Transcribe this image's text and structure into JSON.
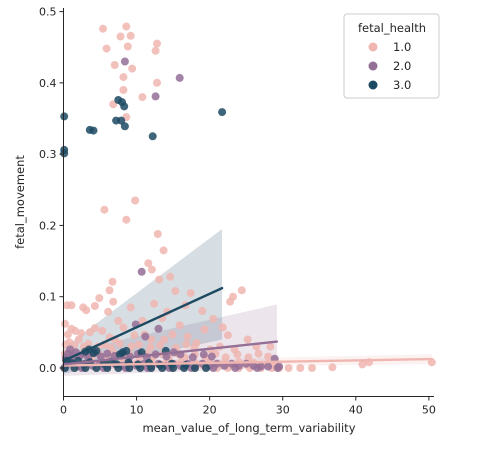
{
  "chart_data": {
    "type": "scatter",
    "xlabel": "mean_value_of_long_term_variability",
    "ylabel": "fetal_movement",
    "xlim": [
      0,
      50.7
    ],
    "ylim": [
      -0.04,
      0.505
    ],
    "xticks": [
      0,
      10,
      20,
      30,
      40,
      50
    ],
    "yticks": [
      0.0,
      0.1,
      0.2,
      0.3,
      0.4,
      0.5
    ],
    "xtick_labels": [
      "0",
      "10",
      "20",
      "30",
      "40",
      "50"
    ],
    "ytick_labels": [
      "0.0",
      "0.1",
      "0.2",
      "0.3",
      "0.4",
      "0.5"
    ],
    "grid": false,
    "legend": {
      "title": "fetal_health",
      "placement": "top-right",
      "entries": [
        "1.0",
        "2.0",
        "3.0"
      ]
    },
    "series": [
      {
        "name": "1.0",
        "color": "#f0b6b0",
        "points": [
          [
            5.4,
            0.476
          ],
          [
            8.6,
            0.479
          ],
          [
            7.8,
            0.465
          ],
          [
            9.2,
            0.466
          ],
          [
            12.8,
            0.455
          ],
          [
            12.6,
            0.445
          ],
          [
            5.9,
            0.448
          ],
          [
            8.8,
            0.451
          ],
          [
            7.0,
            0.425
          ],
          [
            9.4,
            0.42
          ],
          [
            8.2,
            0.408
          ],
          [
            8.2,
            0.39
          ],
          [
            12.8,
            0.4
          ],
          [
            10.8,
            0.38
          ],
          [
            6.8,
            0.37
          ],
          [
            8.6,
            0.352
          ],
          [
            5.6,
            0.222
          ],
          [
            9.8,
            0.235
          ],
          [
            8.6,
            0.208
          ],
          [
            12.9,
            0.188
          ],
          [
            13.7,
            0.165
          ],
          [
            11.6,
            0.147
          ],
          [
            12.1,
            0.138
          ],
          [
            14.6,
            0.128
          ],
          [
            13.1,
            0.124
          ],
          [
            15.3,
            0.108
          ],
          [
            17.4,
            0.105
          ],
          [
            24.4,
            0.109
          ],
          [
            23.2,
            0.1
          ],
          [
            22.8,
            0.093
          ],
          [
            16.7,
            0.088
          ],
          [
            14.2,
            0.079
          ],
          [
            12.4,
            0.09
          ],
          [
            9.2,
            0.085
          ],
          [
            6.8,
            0.093
          ],
          [
            2.7,
            0.085
          ],
          [
            0.5,
            0.088
          ],
          [
            1.1,
            0.088
          ],
          [
            3.1,
            0.081
          ],
          [
            4.9,
            0.098
          ],
          [
            6.3,
            0.109
          ],
          [
            6.7,
            0.121
          ],
          [
            4.3,
            0.087
          ],
          [
            6.1,
            0.079
          ],
          [
            7.5,
            0.066
          ],
          [
            10.8,
            0.066
          ],
          [
            13.5,
            0.07
          ],
          [
            15.9,
            0.06
          ],
          [
            19.0,
            0.08
          ],
          [
            20.5,
            0.069
          ],
          [
            21.8,
            0.057
          ],
          [
            19.3,
            0.054
          ],
          [
            22.5,
            0.046
          ],
          [
            25.2,
            0.04
          ],
          [
            28.3,
            0.03
          ],
          [
            26.4,
            0.03
          ],
          [
            0.2,
            0.062
          ],
          [
            0.6,
            0.047
          ],
          [
            1.1,
            0.055
          ],
          [
            1.6,
            0.052
          ],
          [
            2.1,
            0.04
          ],
          [
            2.4,
            0.049
          ],
          [
            3.6,
            0.05
          ],
          [
            4.3,
            0.056
          ],
          [
            5.3,
            0.052
          ],
          [
            6.3,
            0.043
          ],
          [
            7.0,
            0.04
          ],
          [
            8.2,
            0.057
          ],
          [
            9.7,
            0.046
          ],
          [
            11.1,
            0.047
          ],
          [
            12.0,
            0.04
          ],
          [
            13.8,
            0.04
          ],
          [
            14.9,
            0.047
          ],
          [
            17.0,
            0.044
          ],
          [
            18.2,
            0.035
          ],
          [
            0.3,
            0.033
          ],
          [
            0.8,
            0.036
          ],
          [
            1.5,
            0.032
          ],
          [
            2.8,
            0.03
          ],
          [
            3.4,
            0.034
          ],
          [
            4.7,
            0.03
          ],
          [
            5.6,
            0.033
          ],
          [
            6.5,
            0.028
          ],
          [
            7.7,
            0.034
          ],
          [
            9.3,
            0.03
          ],
          [
            10.3,
            0.033
          ],
          [
            11.9,
            0.029
          ],
          [
            13.2,
            0.032
          ],
          [
            15.4,
            0.028
          ],
          [
            16.8,
            0.033
          ],
          [
            17.9,
            0.028
          ],
          [
            20.1,
            0.026
          ],
          [
            21.4,
            0.03
          ],
          [
            23.4,
            0.026
          ],
          [
            0.2,
            0.02
          ],
          [
            0.9,
            0.02
          ],
          [
            1.7,
            0.016
          ],
          [
            2.6,
            0.02
          ],
          [
            3.8,
            0.015
          ],
          [
            4.9,
            0.019
          ],
          [
            5.9,
            0.015
          ],
          [
            6.9,
            0.02
          ],
          [
            8.0,
            0.017
          ],
          [
            9.0,
            0.019
          ],
          [
            10.4,
            0.015
          ],
          [
            11.4,
            0.02
          ],
          [
            12.3,
            0.016
          ],
          [
            13.5,
            0.019
          ],
          [
            14.4,
            0.015
          ],
          [
            15.6,
            0.02
          ],
          [
            16.6,
            0.015
          ],
          [
            18.0,
            0.019
          ],
          [
            19.4,
            0.015
          ],
          [
            20.8,
            0.02
          ],
          [
            22.2,
            0.015
          ],
          [
            23.8,
            0.019
          ],
          [
            25.3,
            0.015
          ],
          [
            26.7,
            0.02
          ],
          [
            28.0,
            0.016
          ],
          [
            0.4,
            0.008
          ],
          [
            1.2,
            0.005
          ],
          [
            2.2,
            0.007
          ],
          [
            3.1,
            0.004
          ],
          [
            4.0,
            0.007
          ],
          [
            5.0,
            0.005
          ],
          [
            6.0,
            0.008
          ],
          [
            7.1,
            0.004
          ],
          [
            8.1,
            0.008
          ],
          [
            9.1,
            0.005
          ],
          [
            10.0,
            0.007
          ],
          [
            11.0,
            0.004
          ],
          [
            12.0,
            0.008
          ],
          [
            13.0,
            0.005
          ],
          [
            14.0,
            0.007
          ],
          [
            15.0,
            0.004
          ],
          [
            16.0,
            0.008
          ],
          [
            17.0,
            0.005
          ],
          [
            18.0,
            0.007
          ],
          [
            19.0,
            0.004
          ],
          [
            20.0,
            0.008
          ],
          [
            21.0,
            0.005
          ],
          [
            22.0,
            0.007
          ],
          [
            23.0,
            0.004
          ],
          [
            24.0,
            0.008
          ],
          [
            25.0,
            0.005
          ],
          [
            26.0,
            0.007
          ],
          [
            27.0,
            0.004
          ],
          [
            28.0,
            0.006
          ],
          [
            29.0,
            0.004
          ],
          [
            0.1,
            0.0
          ],
          [
            1.5,
            0.0
          ],
          [
            3.0,
            0.0
          ],
          [
            4.5,
            0.0
          ],
          [
            6.0,
            0.0
          ],
          [
            7.5,
            0.0
          ],
          [
            9.0,
            0.0
          ],
          [
            10.5,
            0.0
          ],
          [
            12.0,
            0.0
          ],
          [
            13.5,
            0.0
          ],
          [
            15.0,
            0.0
          ],
          [
            16.5,
            0.0
          ],
          [
            18.0,
            0.0
          ],
          [
            19.5,
            0.0
          ],
          [
            21.0,
            0.0
          ],
          [
            22.5,
            0.0
          ],
          [
            24.0,
            0.0
          ],
          [
            25.5,
            0.0
          ],
          [
            27.0,
            0.0
          ],
          [
            28.5,
            0.0
          ],
          [
            29.5,
            0.0
          ],
          [
            30.8,
            0.0
          ],
          [
            32.4,
            0.0
          ],
          [
            34.0,
            0.0
          ],
          [
            36.8,
            0.001
          ],
          [
            40.9,
            0.005
          ],
          [
            41.8,
            0.008
          ],
          [
            50.4,
            0.008
          ]
        ]
      },
      {
        "name": "2.0",
        "color": "#946f96",
        "points": [
          [
            8.4,
            0.43
          ],
          [
            15.9,
            0.407
          ],
          [
            12.6,
            0.381
          ],
          [
            10.7,
            0.135
          ],
          [
            9.9,
            0.061
          ],
          [
            13.0,
            0.055
          ],
          [
            11.2,
            0.044
          ],
          [
            15.1,
            0.022
          ],
          [
            20.3,
            0.016
          ],
          [
            0.3,
            0.014
          ],
          [
            0.6,
            0.02
          ],
          [
            0.9,
            0.026
          ],
          [
            1.3,
            0.016
          ],
          [
            1.7,
            0.022
          ],
          [
            2.2,
            0.017
          ],
          [
            2.8,
            0.02
          ],
          [
            3.4,
            0.015
          ],
          [
            4.2,
            0.021
          ],
          [
            5.1,
            0.016
          ],
          [
            6.0,
            0.02
          ],
          [
            7.0,
            0.017
          ],
          [
            8.0,
            0.02
          ],
          [
            9.1,
            0.016
          ],
          [
            10.2,
            0.02
          ],
          [
            11.4,
            0.015
          ],
          [
            12.6,
            0.019
          ],
          [
            14.1,
            0.016
          ],
          [
            16.0,
            0.019
          ],
          [
            17.7,
            0.015
          ],
          [
            19.2,
            0.019
          ],
          [
            0.4,
            0.004
          ],
          [
            1.2,
            0.006
          ],
          [
            2.0,
            0.003
          ],
          [
            3.0,
            0.006
          ],
          [
            4.0,
            0.003
          ],
          [
            5.0,
            0.006
          ],
          [
            6.0,
            0.003
          ],
          [
            7.0,
            0.006
          ],
          [
            8.0,
            0.003
          ],
          [
            9.0,
            0.006
          ],
          [
            10.0,
            0.003
          ],
          [
            11.0,
            0.006
          ],
          [
            12.0,
            0.003
          ],
          [
            13.0,
            0.006
          ],
          [
            14.0,
            0.003
          ],
          [
            15.0,
            0.006
          ],
          [
            16.0,
            0.003
          ],
          [
            17.0,
            0.006
          ],
          [
            18.0,
            0.003
          ],
          [
            19.0,
            0.006
          ],
          [
            20.0,
            0.003
          ],
          [
            21.0,
            0.006
          ],
          [
            22.0,
            0.003
          ],
          [
            23.0,
            0.006
          ],
          [
            24.0,
            0.003
          ],
          [
            25.0,
            0.006
          ],
          [
            26.0,
            0.003
          ],
          [
            27.0,
            0.002
          ],
          [
            28.0,
            0.002
          ],
          [
            28.9,
            0.013
          ],
          [
            29.5,
            0.002
          ],
          [
            0.1,
            0.0
          ],
          [
            2.5,
            0.0
          ],
          [
            5.5,
            0.0
          ],
          [
            8.5,
            0.0
          ],
          [
            11.5,
            0.0
          ],
          [
            14.5,
            0.0
          ],
          [
            17.5,
            0.0
          ],
          [
            20.5,
            0.0
          ],
          [
            23.5,
            0.0
          ],
          [
            26.5,
            0.0
          ],
          [
            29.3,
            0.0
          ]
        ]
      },
      {
        "name": "3.0",
        "color": "#1d4a63",
        "points": [
          [
            0.1,
            0.353
          ],
          [
            0.1,
            0.306
          ],
          [
            0.1,
            0.301
          ],
          [
            3.6,
            0.334
          ],
          [
            4.1,
            0.333
          ],
          [
            7.5,
            0.376
          ],
          [
            8.0,
            0.373
          ],
          [
            8.3,
            0.367
          ],
          [
            7.2,
            0.347
          ],
          [
            7.9,
            0.347
          ],
          [
            8.4,
            0.339
          ],
          [
            12.2,
            0.325
          ],
          [
            21.7,
            0.359
          ],
          [
            3.0,
            0.023
          ],
          [
            3.5,
            0.026
          ],
          [
            4.1,
            0.021
          ],
          [
            4.5,
            0.024
          ],
          [
            7.7,
            0.019
          ],
          [
            8.1,
            0.022
          ],
          [
            8.6,
            0.024
          ],
          [
            10.7,
            0.022
          ],
          [
            14.0,
            0.024
          ],
          [
            0.4,
            0.01
          ],
          [
            1.1,
            0.007
          ],
          [
            2.0,
            0.01
          ],
          [
            2.8,
            0.005
          ],
          [
            3.6,
            0.008
          ],
          [
            5.5,
            0.006
          ],
          [
            6.5,
            0.009
          ],
          [
            7.3,
            0.005
          ],
          [
            8.9,
            0.008
          ],
          [
            10.2,
            0.005
          ],
          [
            11.7,
            0.007
          ],
          [
            13.2,
            0.004
          ],
          [
            14.8,
            0.006
          ],
          [
            16.7,
            0.004
          ],
          [
            0.2,
            0.0
          ],
          [
            1.5,
            0.0
          ],
          [
            3.0,
            0.0
          ],
          [
            4.5,
            0.0
          ],
          [
            6.0,
            0.0
          ],
          [
            7.5,
            0.0
          ],
          [
            9.0,
            0.0
          ],
          [
            10.5,
            0.0
          ],
          [
            12.0,
            0.0
          ],
          [
            13.5,
            0.0
          ],
          [
            15.0,
            0.0
          ],
          [
            16.5,
            0.0
          ],
          [
            18.0,
            0.0
          ],
          [
            19.5,
            0.0
          ]
        ]
      }
    ],
    "regression": [
      {
        "series": "1.0",
        "x": [
          0,
          50.4
        ],
        "y": [
          0.0035,
          0.0125
        ],
        "ci_lower": [
          -0.001,
          0.0055
        ],
        "ci_upper": [
          0.008,
          0.0195
        ]
      },
      {
        "series": "2.0",
        "x": [
          0,
          29.2
        ],
        "y": [
          0.005,
          0.037
        ],
        "ci_lower": [
          -0.011,
          0.0
        ],
        "ci_upper": [
          0.021,
          0.089
        ]
      },
      {
        "series": "3.0",
        "x": [
          0,
          21.7
        ],
        "y": [
          0.01,
          0.112
        ],
        "ci_lower": [
          -0.008,
          0.04
        ],
        "ci_upper": [
          0.028,
          0.195
        ]
      }
    ]
  }
}
